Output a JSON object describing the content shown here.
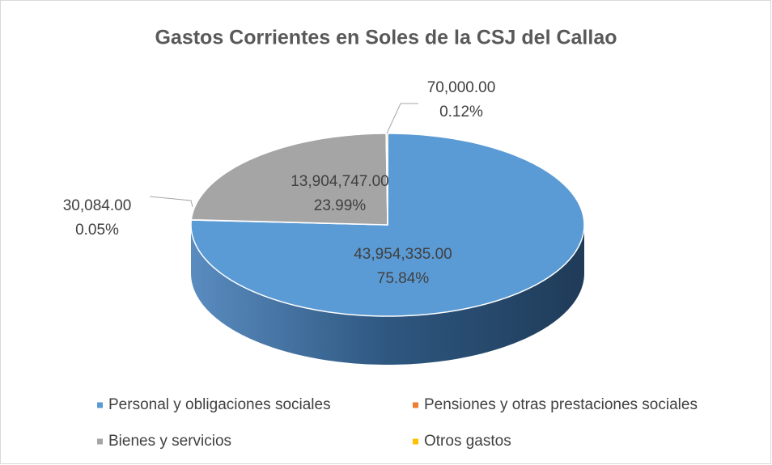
{
  "chart_data": {
    "type": "pie",
    "title": "Gastos Corrientes en Soles de la CSJ del Callao",
    "categories": [
      "Personal y obligaciones sociales",
      "Pensiones y otras prestaciones sociales",
      "Bienes y servicios",
      "Otros gastos"
    ],
    "values": [
      43954335,
      30084,
      13904747,
      70000
    ],
    "value_labels": [
      "43,954,335.00",
      "30,084.00",
      "13,904,747.00",
      "70,000.00"
    ],
    "percentages": [
      75.84,
      0.05,
      23.99,
      0.12
    ],
    "percentage_labels": [
      "75.84%",
      "0.05%",
      "23.99%",
      "0.12%"
    ],
    "colors": [
      "#5b9bd5",
      "#ed7d31",
      "#a5a5a5",
      "#ffc000"
    ],
    "legend": "bottom"
  }
}
